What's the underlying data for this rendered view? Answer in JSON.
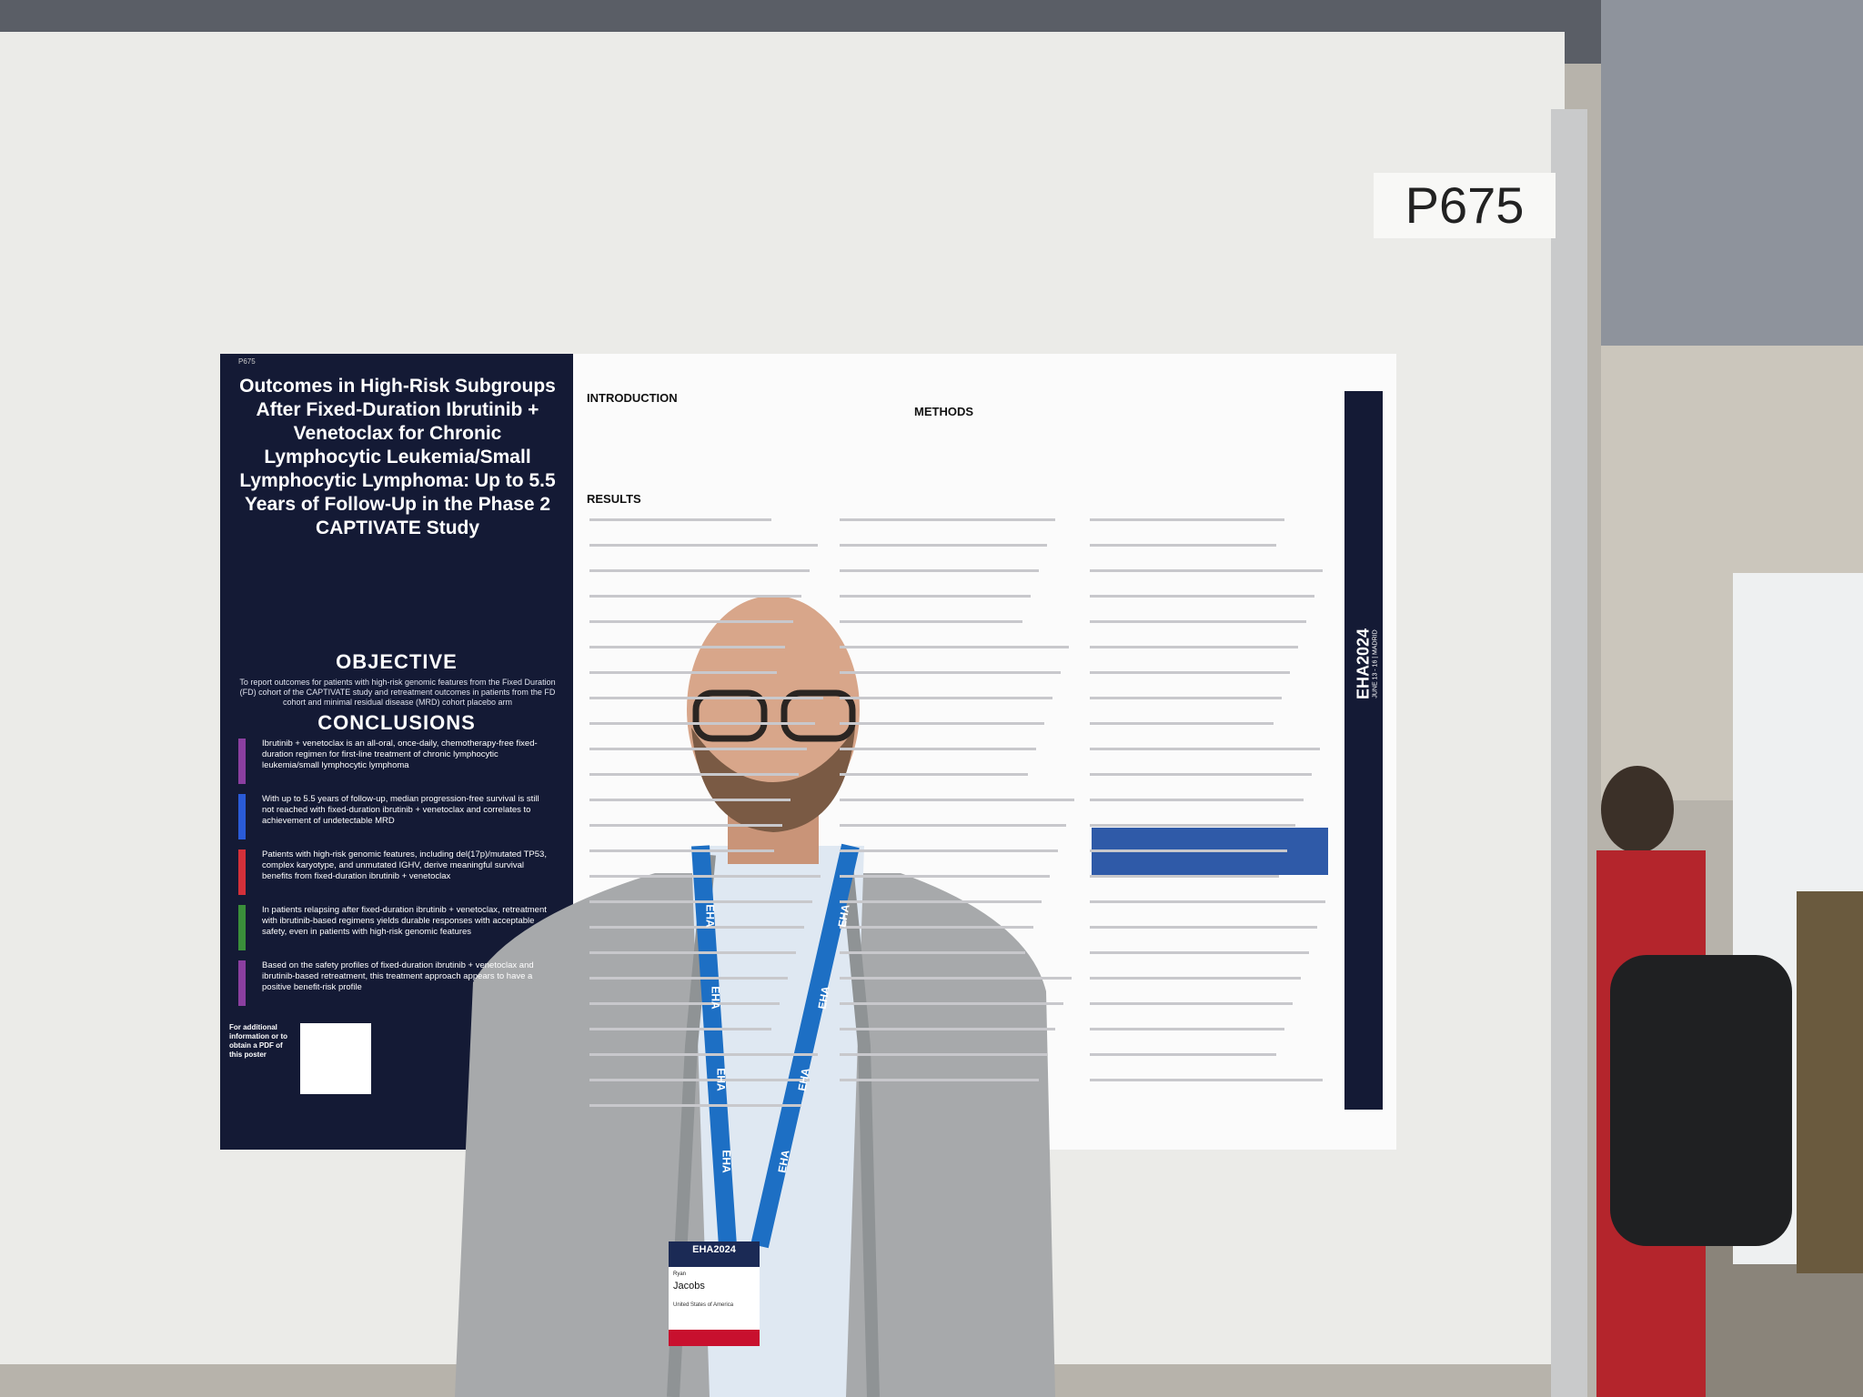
{
  "sign": "P675",
  "poster": {
    "code": "P675",
    "title": "Outcomes in High-Risk Subgroups After Fixed-Duration Ibrutinib + Venetoclax for Chronic Lymphocytic Leukemia/Small Lymphocytic Lymphoma: Up to 5.5 Years of Follow-Up in the Phase 2 CAPTIVATE Study",
    "objective_heading": "OBJECTIVE",
    "objective": "To report outcomes for patients with high-risk genomic features from the Fixed Duration (FD) cohort of the CAPTIVATE study and retreatment outcomes in patients from the FD cohort and minimal residual disease (MRD) cohort placebo arm",
    "conclusions_heading": "CONCLUSIONS",
    "conclusions": [
      "Ibrutinib + venetoclax is an all-oral, once-daily, chemotherapy-free fixed-duration regimen for first-line treatment of chronic lymphocytic leukemia/small lymphocytic lymphoma",
      "With up to 5.5 years of follow-up, median progression-free survival is still not reached with fixed-duration ibrutinib + venetoclax and correlates to achievement of undetectable MRD",
      "Patients with high-risk genomic features, including del(17p)/mutated TP53, complex karyotype, and unmutated IGHV, derive meaningful survival benefits from fixed-duration ibrutinib + venetoclax",
      "In patients relapsing after fixed-duration ibrutinib + venetoclax, retreatment with ibrutinib-based regimens yields durable responses with acceptable safety, even in patients with high-risk genomic features",
      "Based on the safety profiles of fixed-duration ibrutinib + venetoclax and ibrutinib-based retreatment, this treatment approach appears to have a positive benefit-risk profile"
    ],
    "pdf_note": "For additional information or to obtain a PDF of this poster",
    "sections": [
      "INTRODUCTION",
      "METHODS",
      "RESULTS"
    ],
    "side_banner": "EHA2024",
    "side_dates": "JUNE 13 - 16 | MADRID"
  },
  "badge": {
    "event": "EHA2024",
    "first_name": "Ryan",
    "last_name": "Jacobs",
    "country": "United States of America",
    "lanyard": "EHA"
  }
}
